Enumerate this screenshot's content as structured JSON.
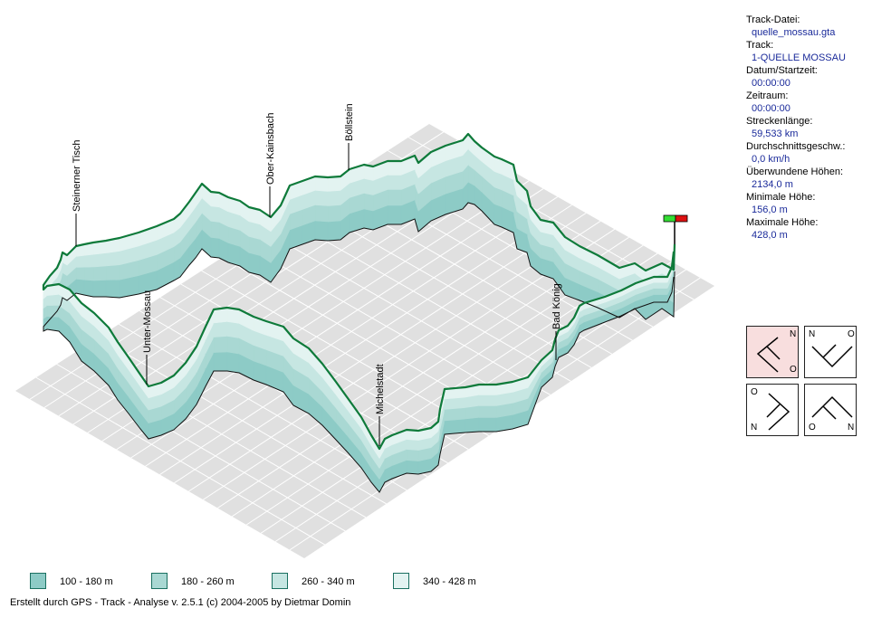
{
  "colors": {
    "track_line": "#0e7a3a",
    "band_1": "#8dcbc6",
    "band_2": "#a9d8d3",
    "band_3": "#c6e6e2",
    "band_4": "#e3f3f1",
    "ground": "#e0e0e0",
    "grid": "#ffffff",
    "value_text": "#1a2a9a",
    "start_flag": "#33dd33",
    "end_flag": "#dd1111",
    "active_view_bg": "#f8dede"
  },
  "places": [
    {
      "name": "Steinerner Tisch"
    },
    {
      "name": "Ober-Kainsbach"
    },
    {
      "name": "Böllstein"
    },
    {
      "name": "Unter-Mossau"
    },
    {
      "name": "Michelstadt"
    },
    {
      "name": "Bad König"
    }
  ],
  "info": {
    "track_file_label": "Track-Datei:",
    "track_file_value": "quelle_mossau.gta",
    "track_label": "Track:",
    "track_value": "1-QUELLE MOSSAU",
    "date_label": "Datum/Startzeit:",
    "date_value": "00:00:00",
    "duration_label": "Zeitraum:",
    "duration_value": "00:00:00",
    "length_label": "Streckenlänge:",
    "length_value": "59,533 km",
    "speed_label": "Durchschnittsgeschw.:",
    "speed_value": "0,0 km/h",
    "climb_label": "Überwundene Höhen:",
    "climb_value": "2134,0 m",
    "min_label": "Minimale Höhe:",
    "min_value": "156,0 m",
    "max_label": "Maximale Höhe:",
    "max_value": "428,0 m"
  },
  "view_buttons": [
    {
      "name": "view-north-east",
      "labels": [
        "N",
        "O"
      ],
      "active": true
    },
    {
      "name": "view-north-west",
      "labels": [
        "N",
        "O"
      ],
      "active": false
    },
    {
      "name": "view-south-west",
      "labels": [
        "O",
        "N"
      ],
      "active": false
    },
    {
      "name": "view-south-east",
      "labels": [
        "O",
        "N"
      ],
      "active": false
    }
  ],
  "legend": [
    {
      "label": "100 - 180 m",
      "color": "#8dcbc6"
    },
    {
      "label": "180 - 260 m",
      "color": "#a9d8d3"
    },
    {
      "label": "260 - 340 m",
      "color": "#c6e6e2"
    },
    {
      "label": "340 - 428 m",
      "color": "#e3f3f1"
    }
  ],
  "credit": "Erstellt durch  GPS - Track - Analyse   v. 2.5.1   (c) 2004-2005 by Dietmar Domin"
}
